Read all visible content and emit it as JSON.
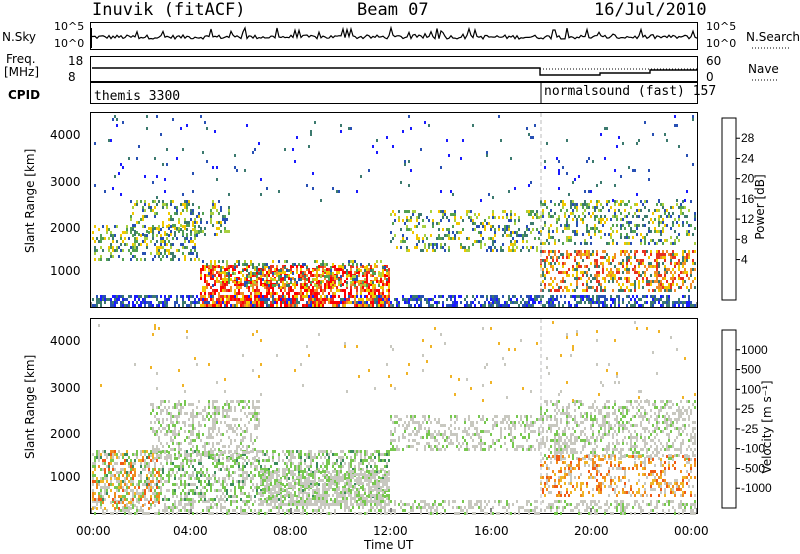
{
  "header": {
    "station": "Inuvik (fitACF)",
    "beam": "Beam 07",
    "date": "16/Jul/2010"
  },
  "top_panels": {
    "nsky_label": "N.Sky",
    "nsky_ticks": [
      "10^5",
      "10^0"
    ],
    "nsky_right_ticks": [
      "10^5",
      "10^0"
    ],
    "nsearch_label": "N.Search",
    "freq_label_1": "Freq.",
    "freq_label_2": "[MHz]",
    "freq_ticks": [
      "18",
      "8"
    ],
    "nave_ticks": [
      "60",
      "0"
    ],
    "nave_label": "Nave",
    "cpid_label": "CPID",
    "cpid_left": "themis 3300",
    "cpid_right": "normalsound (fast) 157"
  },
  "chart_data": [
    {
      "type": "heatmap",
      "name": "power",
      "ylabel": "Slant Range [km]",
      "ylim": [
        180,
        4500
      ],
      "yticks": [
        "4000",
        "3000",
        "2000",
        "1000"
      ],
      "colorbar_label": "Power [dB]",
      "colorbar_ticks": [
        "28",
        "24",
        "20",
        "16",
        "12",
        "8",
        "4"
      ],
      "colors": [
        "#1a1aff",
        "#2850b4",
        "#3c7a6e",
        "#52a052",
        "#a8d040",
        "#f0c800",
        "#f08c28",
        "#e83220",
        "#ff0000"
      ]
    },
    {
      "type": "heatmap",
      "name": "velocity",
      "xlabel": "Time UT",
      "ylabel": "Slant Range [km]",
      "ylim": [
        180,
        4500
      ],
      "yticks": [
        "4000",
        "3000",
        "2000",
        "1000"
      ],
      "xticks": [
        "00:00",
        "04:00",
        "08:00",
        "12:00",
        "16:00",
        "20:00",
        "00:00"
      ],
      "colorbar_label": "Velocity [m s⁻¹]",
      "colorbar_ticks": [
        "1000",
        "500",
        "100",
        "25",
        "-25",
        "-100",
        "-500",
        "-1000"
      ],
      "colors": [
        "#2840c8",
        "#3c64a0",
        "#3c8c5a",
        "#78c850",
        "#c8c8c0",
        "#f0b428",
        "#f08c1e",
        "#f05a14",
        "#ff0000"
      ]
    }
  ]
}
